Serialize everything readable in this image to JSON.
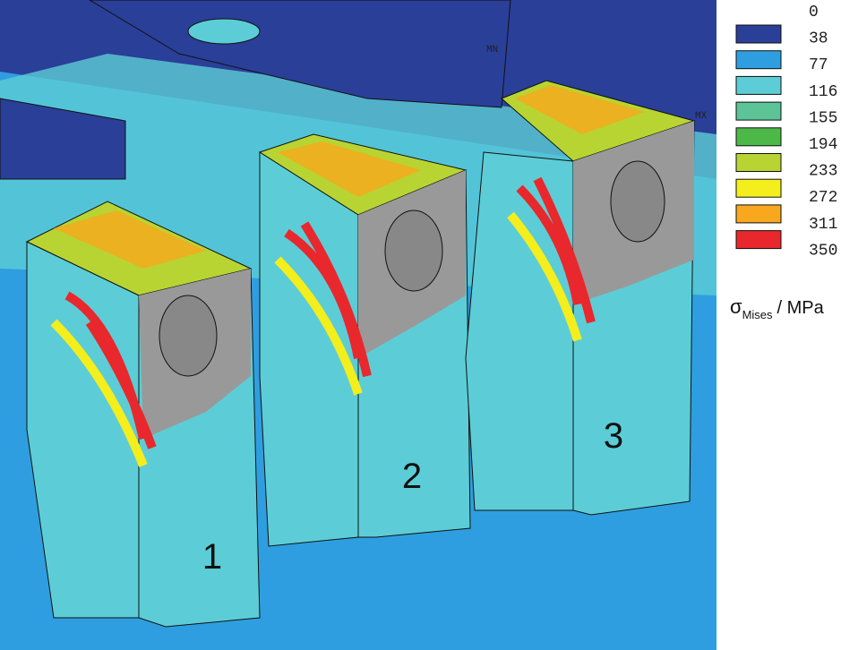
{
  "legend": {
    "levels": [
      0,
      38,
      77,
      116,
      155,
      194,
      233,
      272,
      311,
      350
    ],
    "colors": [
      "#2a3f98",
      "#2e9ee0",
      "#5ccdd6",
      "#5cc497",
      "#4cb848",
      "#b8d432",
      "#f4ee1c",
      "#f8a81c",
      "#e8282c"
    ],
    "quantity": {
      "symbol": "σ",
      "subscript": "Mises",
      "unit": "/ MPa"
    }
  },
  "markers": {
    "min": "MN",
    "max": "MX"
  },
  "lugs": [
    "1",
    "2",
    "3"
  ]
}
